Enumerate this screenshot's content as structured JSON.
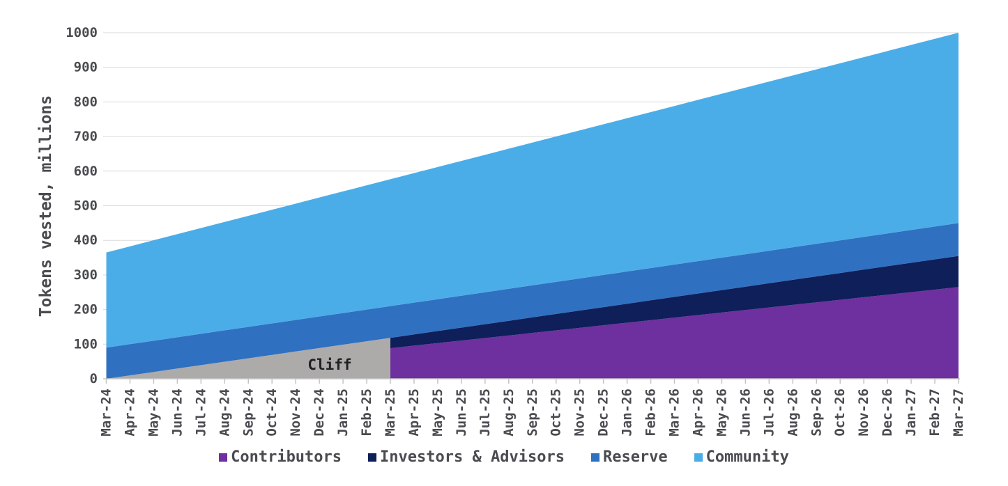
{
  "chart_data": {
    "type": "area",
    "stacked": true,
    "title": "",
    "xlabel": "",
    "ylabel": "Tokens vested, millions",
    "ylim": [
      0,
      1000
    ],
    "y_ticks": [
      0,
      100,
      200,
      300,
      400,
      500,
      600,
      700,
      800,
      900,
      1000
    ],
    "grid": "horizontal",
    "legend_position": "bottom",
    "x": [
      "Mar-24",
      "Apr-24",
      "May-24",
      "Jun-24",
      "Jul-24",
      "Aug-24",
      "Sep-24",
      "Oct-24",
      "Nov-24",
      "Dec-24",
      "Jan-25",
      "Feb-25",
      "Mar-25",
      "Apr-25",
      "May-25",
      "Jun-25",
      "Jul-25",
      "Aug-25",
      "Sep-25",
      "Oct-25",
      "Nov-25",
      "Dec-25",
      "Jan-26",
      "Feb-26",
      "Mar-26",
      "Apr-26",
      "May-26",
      "Jun-26",
      "Jul-26",
      "Aug-26",
      "Sep-26",
      "Oct-26",
      "Nov-26",
      "Dec-26",
      "Jan-27",
      "Feb-27",
      "Mar-27"
    ],
    "series": [
      {
        "name": "Contributors",
        "color": "#6E2F9F",
        "total_at_end": 265,
        "values": [
          0,
          7.4,
          14.7,
          22.1,
          29.4,
          36.8,
          44.2,
          51.5,
          58.9,
          66.2,
          73.6,
          81.0,
          88.3,
          95.7,
          103.1,
          110.4,
          117.8,
          125.1,
          132.5,
          139.9,
          147.2,
          154.6,
          161.9,
          169.3,
          176.7,
          184.0,
          191.4,
          198.7,
          206.1,
          213.5,
          220.8,
          228.2,
          235.6,
          242.9,
          250.3,
          257.6,
          265.0
        ]
      },
      {
        "name": "Investors & Advisors",
        "color": "#0E1F5A",
        "total_at_end": 90,
        "values": [
          0,
          2.5,
          5,
          7.5,
          10,
          12.5,
          15,
          17.5,
          20,
          22.5,
          25,
          27.5,
          30,
          32.5,
          35,
          37.5,
          40,
          42.5,
          45,
          47.5,
          50,
          52.5,
          55,
          57.5,
          60,
          62.5,
          65,
          67.5,
          70,
          72.5,
          75,
          77.5,
          80,
          82.5,
          85,
          87.5,
          90
        ]
      },
      {
        "name": "Reserve",
        "color": "#2F70C0",
        "total_at_end": 95,
        "values": [
          90.0,
          90.1,
          90.3,
          90.4,
          90.6,
          90.7,
          90.8,
          91.0,
          91.1,
          91.3,
          91.4,
          91.5,
          91.7,
          91.8,
          91.9,
          92.1,
          92.2,
          92.4,
          92.5,
          92.6,
          92.8,
          92.9,
          93.1,
          93.2,
          93.3,
          93.5,
          93.6,
          93.8,
          93.9,
          94.0,
          94.2,
          94.3,
          94.4,
          94.6,
          94.7,
          94.9,
          95.0
        ]
      },
      {
        "name": "Community",
        "color": "#4BADE8",
        "total_at_end": 550,
        "values": [
          275.0,
          282.6,
          290.3,
          297.9,
          305.6,
          313.2,
          320.8,
          328.5,
          336.1,
          343.8,
          351.4,
          359.0,
          366.7,
          374.3,
          382.0,
          389.6,
          397.2,
          404.9,
          412.5,
          420.1,
          427.8,
          435.4,
          443.1,
          450.7,
          458.3,
          466.0,
          473.6,
          481.3,
          488.9,
          496.5,
          504.2,
          511.8,
          519.4,
          527.1,
          534.7,
          542.4,
          550.0
        ]
      }
    ],
    "cliff": {
      "label": "Cliff",
      "start_month": "Mar-24",
      "end_month": "Mar-25",
      "color": "#ADABAA",
      "covers_series": [
        "Contributors",
        "Investors & Advisors"
      ]
    }
  },
  "style": {
    "background": "#FFFFFF",
    "grid_color": "#DADADA",
    "axis_color": "#C4C4C4",
    "text_color": "#494B50",
    "cliff_text_color": "#1F2023"
  }
}
